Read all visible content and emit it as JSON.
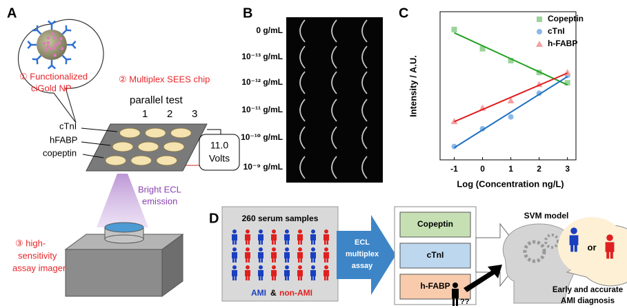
{
  "panel_a": {
    "label": "A",
    "bubble_text": [
      "① Functionalized",
      "ciGold NP"
    ],
    "chip_title": "② Multiplex SEES chip",
    "parallel_test": "parallel test",
    "columns": [
      "1",
      "2",
      "3"
    ],
    "rows": [
      "cTnI",
      "hFABP",
      "copeptin"
    ],
    "voltage": [
      "11.0",
      "Volts"
    ],
    "emission": [
      "Bright ECL",
      "emission"
    ],
    "imager": [
      "③ high-",
      "sensitivity",
      "assay imager"
    ]
  },
  "panel_b": {
    "label": "B",
    "concentrations": [
      "0 g/mL",
      "10⁻¹³ g/mL",
      "10⁻¹² g/mL",
      "10⁻¹¹ g/mL",
      "10⁻¹⁰ g/mL",
      "10⁻⁹ g/mL"
    ]
  },
  "chart_data": {
    "type": "scatter",
    "panel_label": "C",
    "x_label": "Log (Concentration ng/L)",
    "y_label": "Intensity / A.U.",
    "x": [
      -1,
      0,
      1,
      2,
      3
    ],
    "xlim": [
      -1.5,
      3.3
    ],
    "xticks": [
      -1,
      0,
      1,
      2,
      3
    ],
    "ylim": [
      0,
      100
    ],
    "fit": "linear",
    "legend": "upper right",
    "series": [
      {
        "name": "Copeptin",
        "color": "#23a023",
        "marker_color": "#9ad49a",
        "marker": "square",
        "values": [
          88,
          75,
          67,
          59,
          52
        ]
      },
      {
        "name": "cTnI",
        "color": "#1f6fbf",
        "marker_color": "#8ab8e8",
        "marker": "circle",
        "values": [
          9,
          21,
          29,
          45,
          57
        ]
      },
      {
        "name": "h-FABP",
        "color": "#e01e1e",
        "marker_color": "#f4a0a0",
        "marker": "triangle",
        "values": [
          26,
          35,
          40,
          51,
          59
        ]
      }
    ]
  },
  "panel_d": {
    "label": "D",
    "samples_title": "260 serum samples",
    "groups": [
      "AMI",
      "&",
      "non-AMI"
    ],
    "assay": [
      "ECL",
      "multiplex",
      "assay"
    ],
    "markers": [
      "Copeptin",
      "cTnI",
      "h-FABP"
    ],
    "model": "SVM model",
    "choice": "or",
    "unknown": "??",
    "conclusion": [
      "Early and accurate",
      "AMI diagnosis"
    ]
  }
}
